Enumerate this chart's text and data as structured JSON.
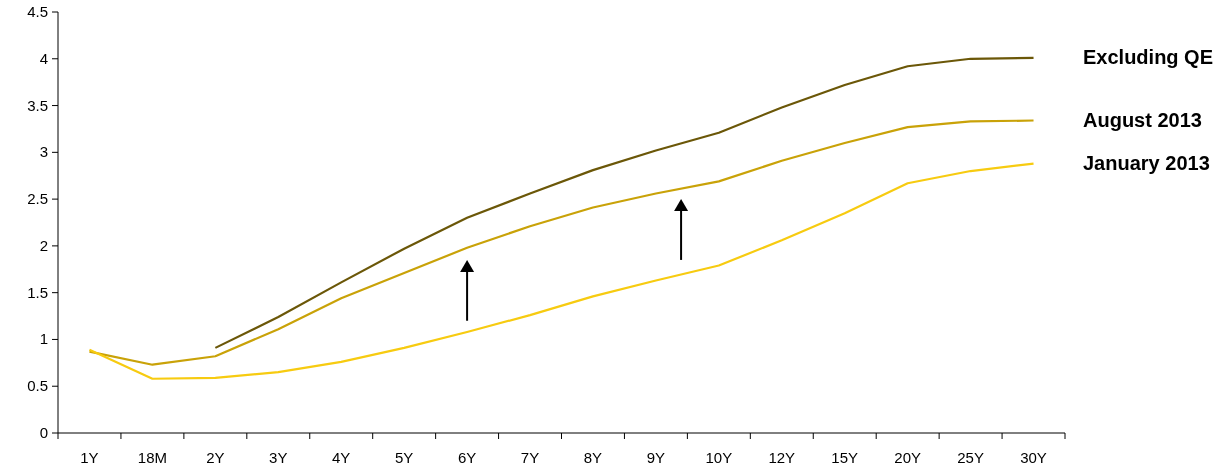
{
  "chart_data": {
    "type": "line",
    "categories": [
      "1Y",
      "18M",
      "2Y",
      "3Y",
      "4Y",
      "5Y",
      "6Y",
      "7Y",
      "8Y",
      "9Y",
      "10Y",
      "12Y",
      "15Y",
      "20Y",
      "25Y",
      "30Y"
    ],
    "series": [
      {
        "name": "Excluding QE",
        "color": "#6b5708",
        "values": [
          null,
          null,
          0.91,
          1.24,
          1.61,
          1.97,
          2.3,
          2.56,
          2.81,
          3.02,
          3.21,
          3.48,
          3.72,
          3.92,
          4.0,
          4.01
        ]
      },
      {
        "name": "August 2013",
        "color": "#c9a208",
        "values": [
          0.87,
          0.73,
          0.82,
          1.11,
          1.44,
          1.71,
          1.98,
          2.21,
          2.41,
          2.56,
          2.69,
          2.91,
          3.1,
          3.27,
          3.33,
          3.34
        ]
      },
      {
        "name": "January 2013",
        "color": "#f7cb10",
        "values": [
          0.89,
          0.58,
          0.59,
          0.65,
          0.76,
          0.91,
          1.08,
          1.26,
          1.46,
          1.63,
          1.79,
          2.06,
          2.35,
          2.67,
          2.8,
          2.88
        ]
      }
    ],
    "ylim": [
      0,
      4.5
    ],
    "yticks": [
      0,
      0.5,
      1,
      1.5,
      2,
      2.5,
      3,
      3.5,
      4,
      4.5
    ],
    "grid": false,
    "marker": "none",
    "line_style": "solid"
  }
}
